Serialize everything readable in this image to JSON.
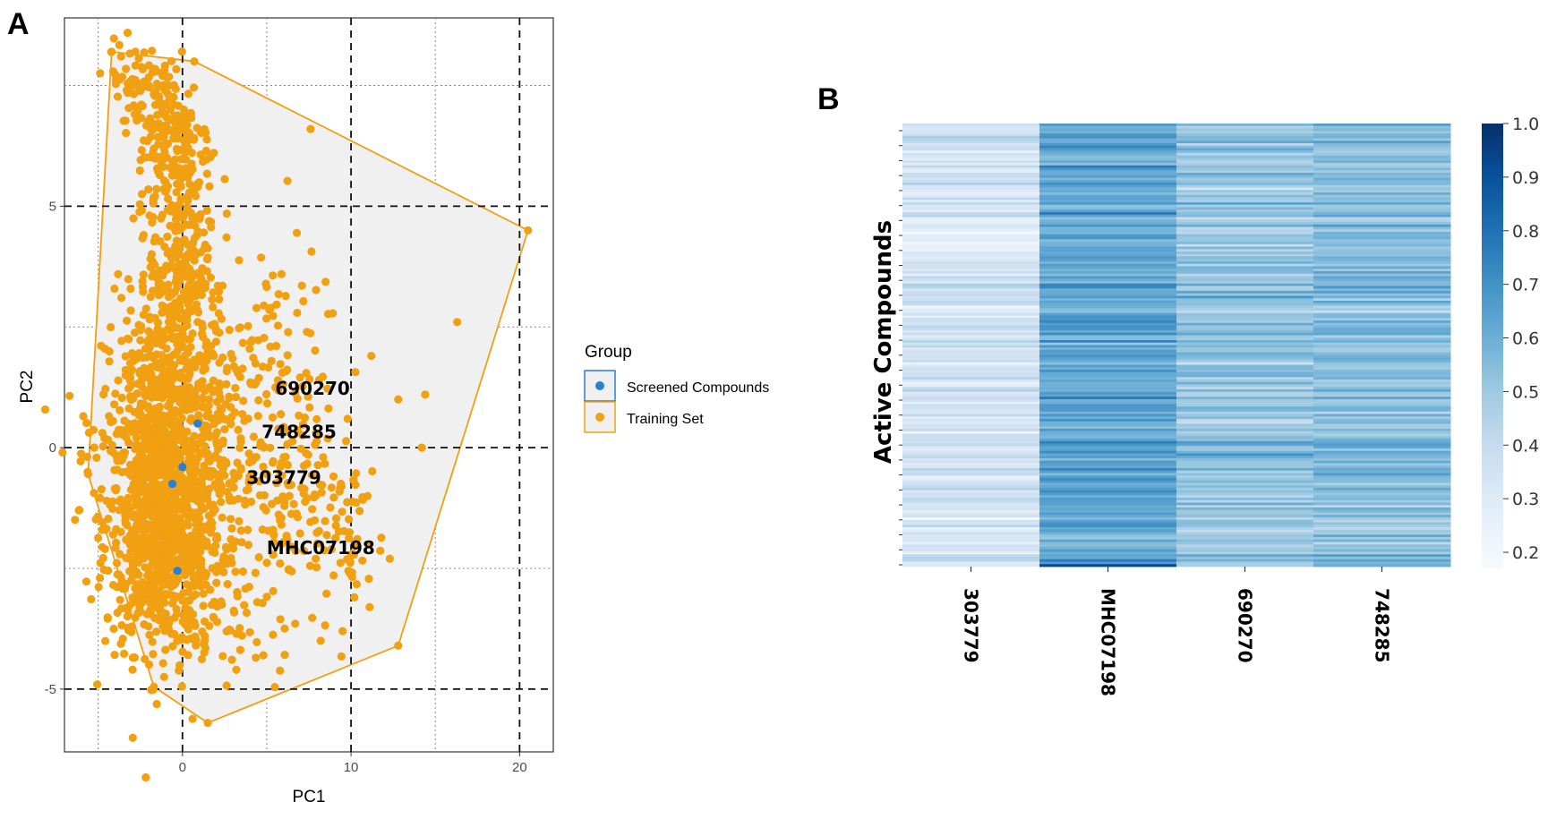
{
  "figure": {
    "panel_a_letter": "A",
    "panel_b_letter": "B"
  },
  "chart_data": [
    {
      "type": "scatter",
      "panel": "A",
      "title": "",
      "xlabel": "PC1",
      "ylabel": "PC2",
      "xlim": [
        -7,
        22
      ],
      "ylim": [
        -6.3,
        8.9
      ],
      "xticks": [
        0,
        10,
        20
      ],
      "xtick_labels": [
        "0",
        "10",
        "20"
      ],
      "yticks": [
        -5,
        0,
        5
      ],
      "ytick_labels": [
        "-5",
        "0",
        "5"
      ],
      "grid": true,
      "legend_title": "Group",
      "legend_position": "right",
      "series": [
        {
          "name": "Screened Compounds",
          "color": "#2a7fd4",
          "points": [
            [
              0.9,
              0.5
            ],
            [
              0.0,
              -0.4
            ],
            [
              -0.6,
              -0.75
            ],
            [
              -0.3,
              -2.55
            ]
          ]
        },
        {
          "name": "Training Set",
          "color": "#f0a010",
          "hull": [
            [
              -4.2,
              8.2
            ],
            [
              0.7,
              8.0
            ],
            [
              20.5,
              4.5
            ],
            [
              12.8,
              -4.1
            ],
            [
              1.5,
              -5.7
            ],
            [
              -1.7,
              -4.95
            ],
            [
              -5.6,
              -0.55
            ],
            [
              -4.2,
              8.2
            ]
          ],
          "cluster_centers": [
            [
              -1.2,
              -1.5
            ],
            [
              -0.8,
              0.8
            ],
            [
              -0.3,
              3.8
            ],
            [
              -0.2,
              6.2
            ],
            [
              0.5,
              1.5
            ],
            [
              2.5,
              -1.0
            ],
            [
              5.5,
              0.0
            ],
            [
              8.0,
              -1.5
            ],
            [
              6.0,
              2.0
            ]
          ],
          "outliers": [
            [
              16.3,
              2.6
            ],
            [
              7.6,
              6.6
            ],
            [
              12.8,
              1.0
            ],
            [
              14.4,
              1.1
            ],
            [
              14.2,
              0.0
            ],
            [
              11.2,
              1.9
            ],
            [
              12.3,
              -2.3
            ],
            [
              10.2,
              -3.1
            ],
            [
              11.1,
              -3.3
            ],
            [
              9.5,
              -3.8
            ],
            [
              8.2,
              -4.0
            ],
            [
              4.8,
              -4.3
            ],
            [
              3.2,
              -4.6
            ]
          ]
        }
      ],
      "annotations": [
        {
          "text": "690270",
          "x": 5.5,
          "y": 1.1
        },
        {
          "text": "748285",
          "x": 4.7,
          "y": 0.2
        },
        {
          "text": "303779",
          "x": 3.8,
          "y": -0.75
        },
        {
          "text": "MHC07198",
          "x": 5.0,
          "y": -2.2
        }
      ]
    },
    {
      "type": "heatmap",
      "panel": "B",
      "title": "",
      "ylabel": "Active Compounds",
      "xlabel": "",
      "columns": [
        "303779",
        "MHC07198",
        "690270",
        "748285"
      ],
      "column_mean_values": [
        0.35,
        0.63,
        0.52,
        0.55
      ],
      "value_range": [
        0.17,
        1.0
      ],
      "colormap": "Blues",
      "colorbar_ticks": [
        0.2,
        0.3,
        0.4,
        0.5,
        0.6,
        0.7,
        0.8,
        0.9,
        1.0
      ],
      "colorbar_tick_labels": [
        "0.2",
        "0.3",
        "0.4",
        "0.5",
        "0.6",
        "0.7",
        "0.8",
        "0.9",
        "1.0"
      ],
      "n_rows": 180
    }
  ]
}
